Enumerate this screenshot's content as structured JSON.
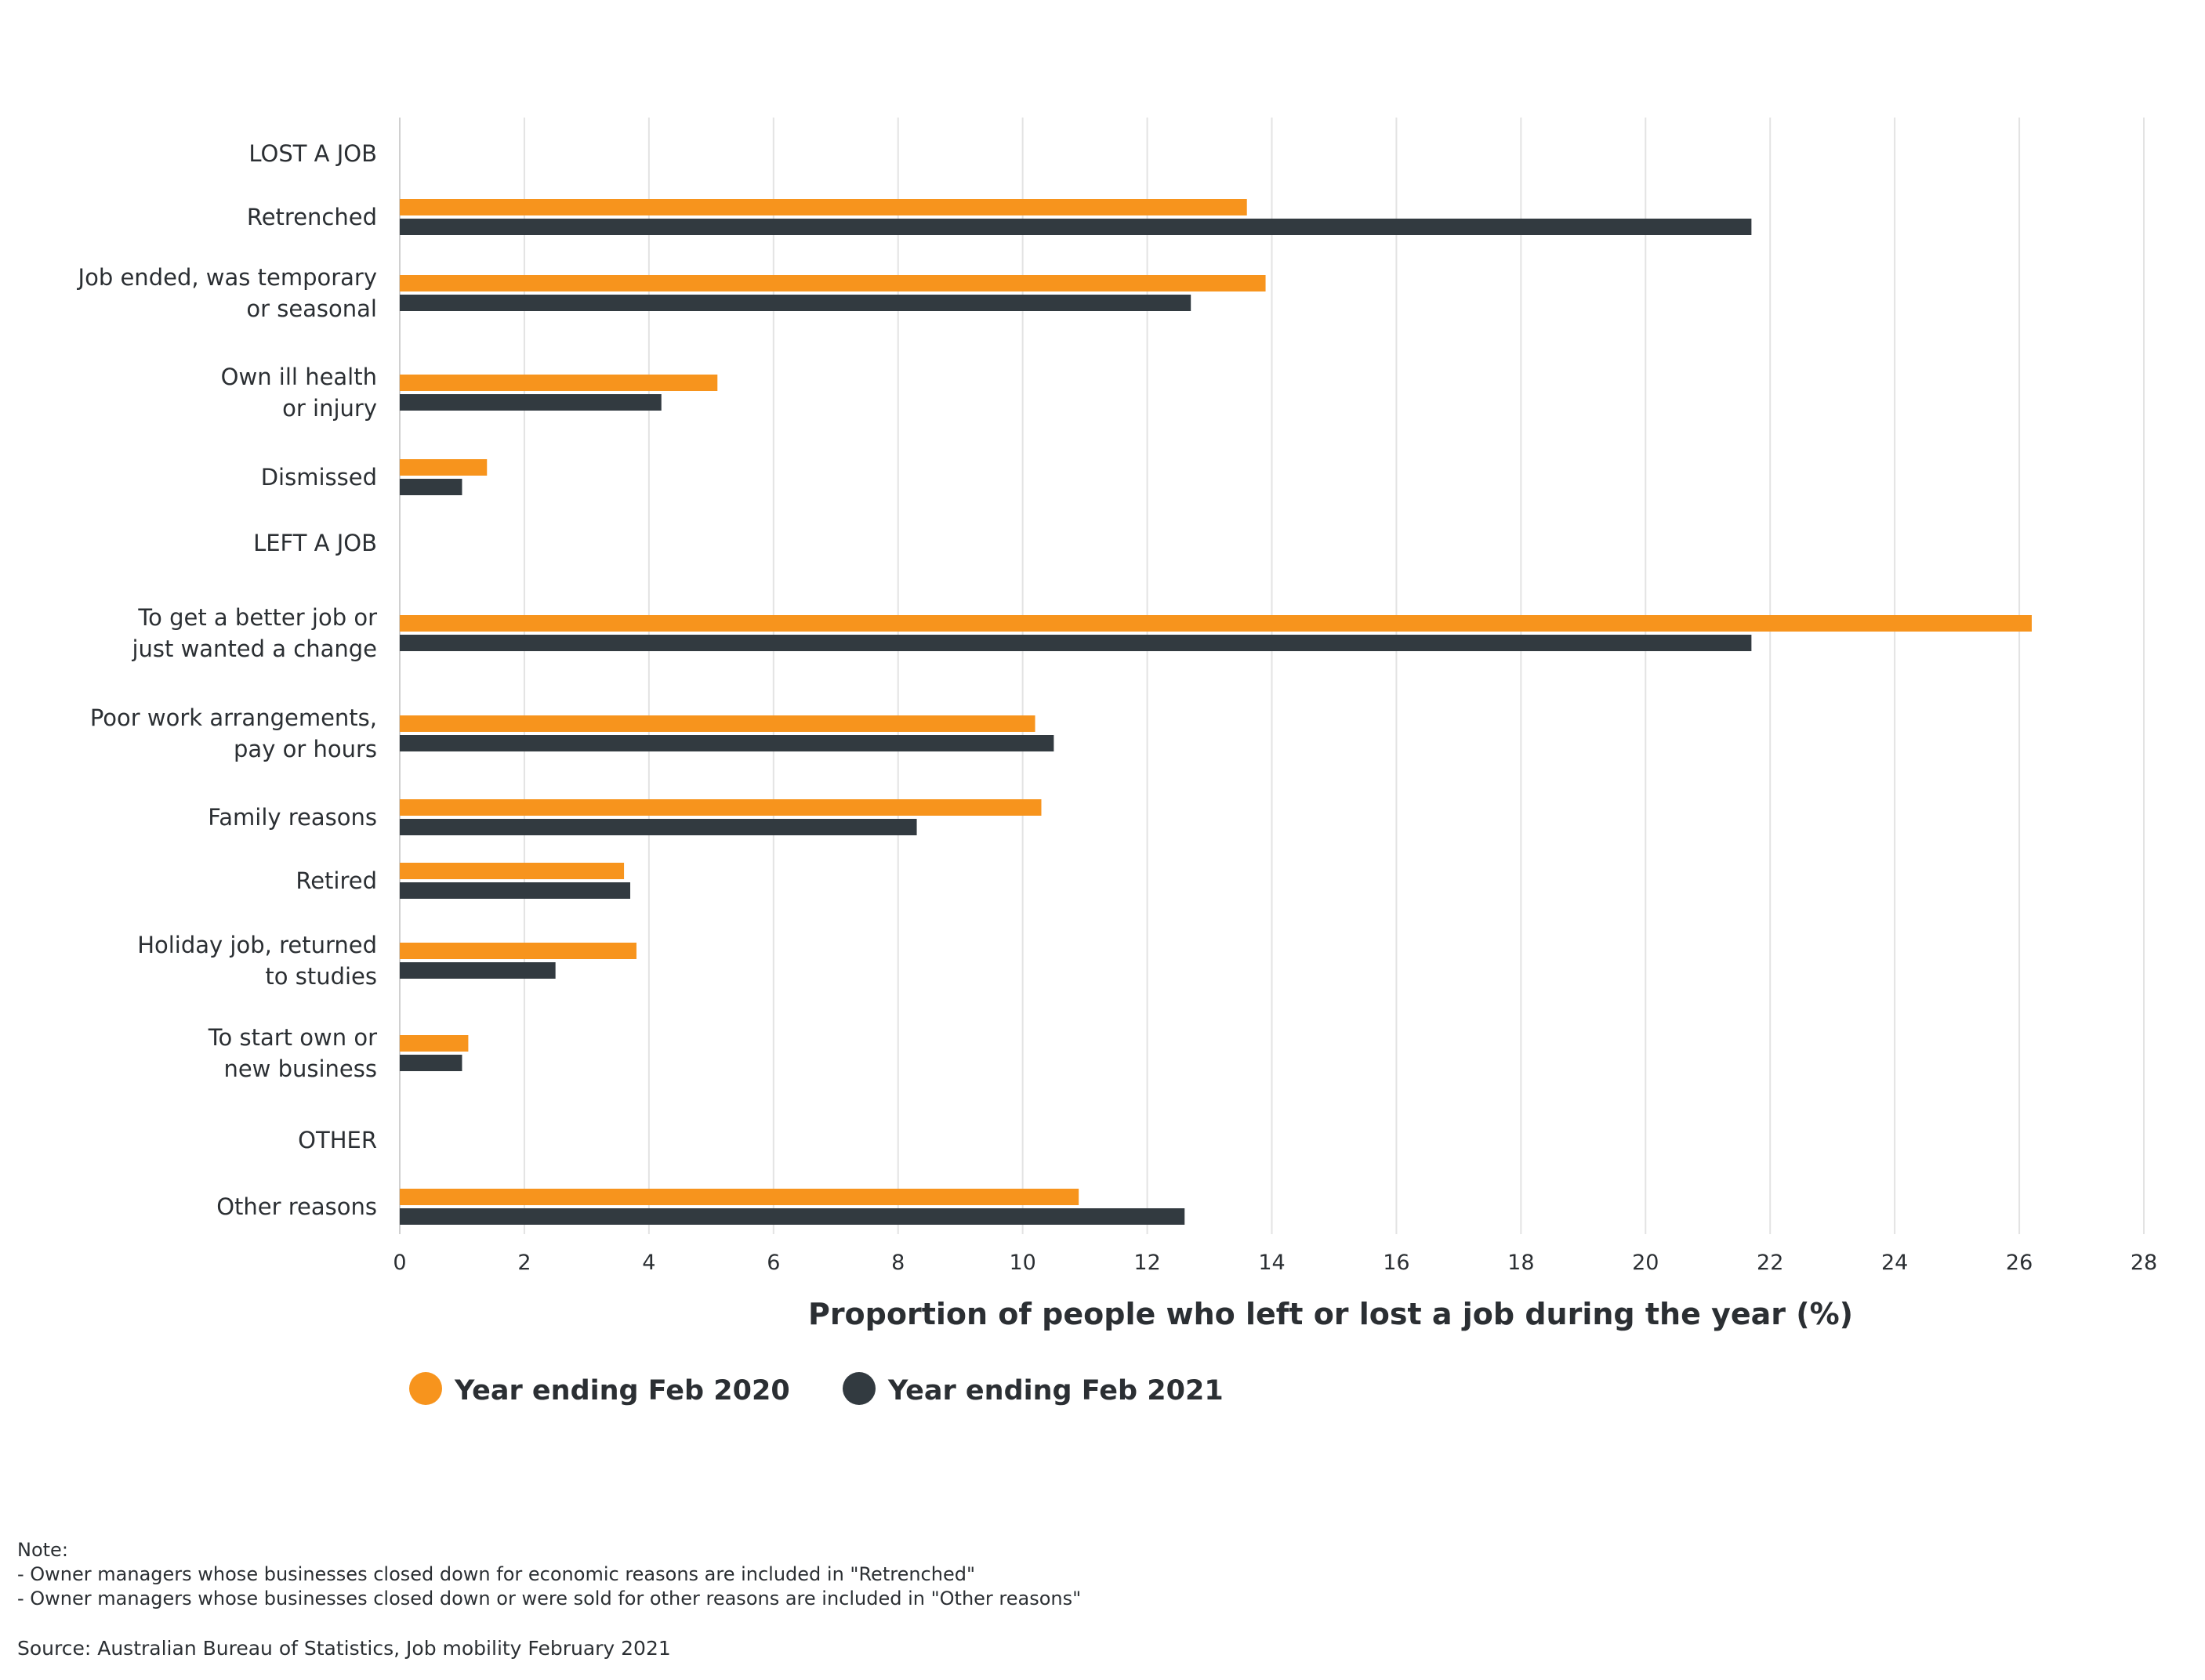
{
  "chart_data": {
    "type": "bar",
    "orientation": "horizontal",
    "categories": [
      [
        "LOST A JOB"
      ],
      [
        "Retrenched"
      ],
      [
        "Job ended, was temporary",
        "or seasonal"
      ],
      [
        "Own ill health",
        "or injury"
      ],
      [
        "Dismissed"
      ],
      [
        "LEFT A JOB"
      ],
      [
        "To get a better job or",
        "just wanted a change"
      ],
      [
        "Poor work arrangements,",
        "pay or hours"
      ],
      [
        "Family reasons"
      ],
      [
        "Retired"
      ],
      [
        "Holiday job, returned",
        "to studies"
      ],
      [
        "To start own or",
        "new business"
      ],
      [
        "OTHER"
      ],
      [
        "Other reasons"
      ]
    ],
    "series": [
      {
        "name": "Year ending Feb 2020",
        "color": "#f7941d",
        "values": [
          null,
          13.6,
          13.9,
          5.1,
          1.4,
          null,
          26.2,
          10.2,
          10.3,
          3.6,
          3.8,
          1.1,
          null,
          10.9
        ]
      },
      {
        "name": "Year ending Feb 2021",
        "color": "#323a40",
        "values": [
          null,
          21.7,
          12.7,
          4.2,
          1.0,
          null,
          21.7,
          10.5,
          8.3,
          3.7,
          2.5,
          1.0,
          null,
          12.6
        ]
      }
    ],
    "xlabel": "Proportion of people who left or lost a job during the year (%)",
    "ylabel": "",
    "xlim": [
      0,
      28
    ],
    "xticks": [
      0,
      2,
      4,
      6,
      8,
      10,
      12,
      14,
      16,
      18,
      20,
      22,
      24,
      26,
      28
    ],
    "grid": "vertical",
    "legend": "bottom-left"
  },
  "notes": {
    "heading": "Note:",
    "lines": [
      "- Owner managers whose businesses closed down for economic reasons are included in \"Retrenched\"",
      "- Owner managers whose businesses closed down or were sold for other reasons are included in \"Other reasons\""
    ]
  },
  "source": "Source: Australian Bureau of Statistics, Job mobility February 2021"
}
